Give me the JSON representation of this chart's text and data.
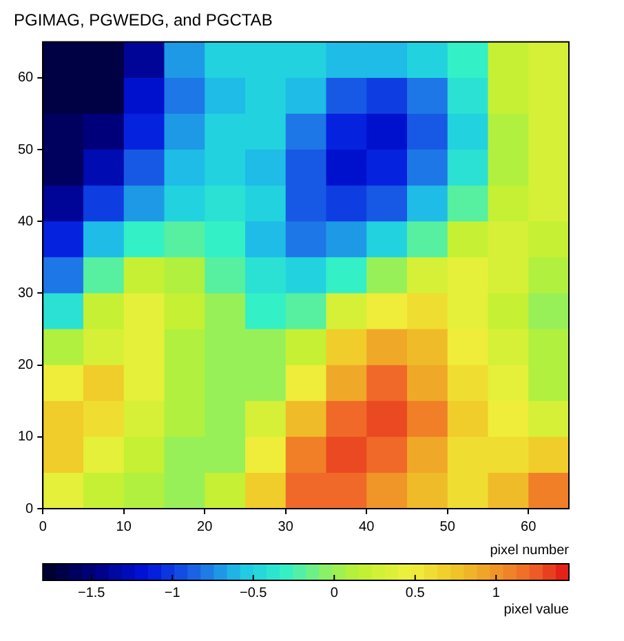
{
  "chart_data": {
    "type": "heatmap",
    "title": "PGIMAG, PGWEDG, and PGCTAB",
    "xlabel": "pixel number",
    "clabel": "pixel value",
    "x": [
      2.5,
      7.5,
      12.5,
      17.5,
      22.5,
      27.5,
      32.5,
      37.5,
      42.5,
      47.5,
      52.5,
      57.5,
      62.5
    ],
    "xlim": [
      0,
      65
    ],
    "xticks": [
      0,
      10,
      20,
      30,
      40,
      50,
      60
    ],
    "ylim": [
      0,
      65
    ],
    "yticks": [
      0,
      10,
      20,
      30,
      40,
      50,
      60
    ],
    "clim": [
      -1.8,
      1.45
    ],
    "cticks": [
      -1.5,
      -1,
      -0.5,
      0,
      0.5,
      1
    ],
    "cells": [
      [
        -1.7,
        -1.7,
        -1.4,
        -0.7,
        -0.5,
        -0.5,
        -0.5,
        -0.6,
        -0.6,
        -0.5,
        -0.3,
        0.2,
        0.3
      ],
      [
        -1.7,
        -1.7,
        -1.2,
        -0.8,
        -0.6,
        -0.5,
        -0.6,
        -0.9,
        -1.0,
        -0.8,
        -0.4,
        0.2,
        0.3
      ],
      [
        -1.6,
        -1.5,
        -1.1,
        -0.7,
        -0.5,
        -0.5,
        -0.8,
        -1.1,
        -1.2,
        -0.9,
        -0.5,
        0.1,
        0.3
      ],
      [
        -1.6,
        -1.3,
        -0.9,
        -0.6,
        -0.5,
        -0.6,
        -0.9,
        -1.2,
        -1.1,
        -0.8,
        -0.4,
        0.1,
        0.3
      ],
      [
        -1.4,
        -1.0,
        -0.7,
        -0.5,
        -0.4,
        -0.5,
        -0.9,
        -1.0,
        -0.9,
        -0.6,
        -0.2,
        0.2,
        0.3
      ],
      [
        -1.1,
        -0.6,
        -0.3,
        -0.2,
        -0.3,
        -0.6,
        -0.8,
        -0.7,
        -0.5,
        -0.2,
        0.2,
        0.3,
        0.2
      ],
      [
        -0.8,
        -0.2,
        0.2,
        0.1,
        -0.2,
        -0.4,
        -0.5,
        -0.3,
        0.0,
        0.3,
        0.4,
        0.3,
        0.1
      ],
      [
        -0.4,
        0.2,
        0.4,
        0.2,
        0.0,
        -0.3,
        -0.2,
        0.3,
        0.5,
        0.6,
        0.4,
        0.2,
        0.0
      ],
      [
        0.1,
        0.3,
        0.4,
        0.1,
        0.0,
        0.0,
        0.2,
        0.7,
        0.9,
        0.8,
        0.5,
        0.3,
        0.1
      ],
      [
        0.5,
        0.7,
        0.4,
        0.1,
        0.0,
        0.0,
        0.5,
        0.9,
        1.2,
        0.9,
        0.6,
        0.4,
        0.1
      ],
      [
        0.7,
        0.6,
        0.3,
        0.1,
        0.0,
        0.3,
        0.8,
        1.2,
        1.3,
        1.1,
        0.7,
        0.5,
        0.3
      ],
      [
        0.7,
        0.4,
        0.2,
        0.0,
        0.0,
        0.5,
        1.1,
        1.3,
        1.2,
        0.9,
        0.6,
        0.6,
        0.7
      ],
      [
        0.4,
        0.2,
        0.1,
        0.0,
        0.2,
        0.7,
        1.2,
        1.2,
        1.0,
        0.8,
        0.6,
        0.8,
        1.1
      ]
    ]
  }
}
